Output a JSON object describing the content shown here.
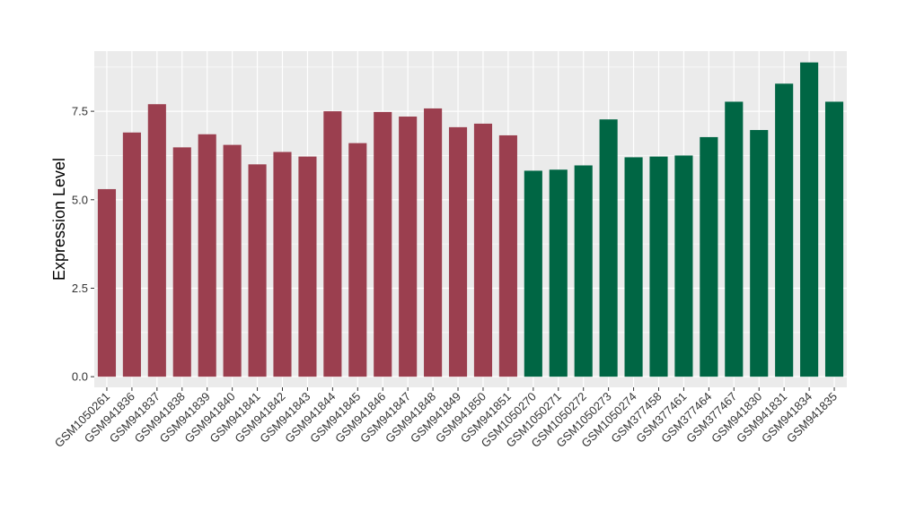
{
  "chart_data": {
    "type": "bar",
    "title": "",
    "xlabel": "",
    "ylabel": "Expression Level",
    "ylim": [
      -0.3,
      9.2
    ],
    "yticks": [
      0.0,
      2.5,
      5.0,
      7.5
    ],
    "ytick_labels": [
      "0.0",
      "2.5",
      "5.0",
      "7.5"
    ],
    "grid": true,
    "legend": "none",
    "categories": [
      "GSM1050261",
      "GSM941836",
      "GSM941837",
      "GSM941838",
      "GSM941839",
      "GSM941840",
      "GSM941841",
      "GSM941842",
      "GSM941843",
      "GSM941844",
      "GSM941845",
      "GSM941846",
      "GSM941847",
      "GSM941848",
      "GSM941849",
      "GSM941850",
      "GSM941851",
      "GSM1050270",
      "GSM1050271",
      "GSM1050272",
      "GSM1050273",
      "GSM1050274",
      "GSM377458",
      "GSM377461",
      "GSM377464",
      "GSM377467",
      "GSM941830",
      "GSM941831",
      "GSM941834",
      "GSM941835"
    ],
    "values": [
      5.3,
      6.9,
      7.7,
      6.48,
      6.85,
      6.55,
      6.0,
      6.35,
      6.22,
      7.5,
      6.6,
      7.48,
      7.35,
      7.58,
      7.05,
      7.15,
      6.82,
      5.82,
      5.85,
      5.97,
      7.27,
      6.2,
      6.22,
      6.25,
      6.77,
      7.77,
      6.97,
      8.28,
      8.88,
      7.77
    ],
    "colors": [
      "#9b3f4f",
      "#9b3f4f",
      "#9b3f4f",
      "#9b3f4f",
      "#9b3f4f",
      "#9b3f4f",
      "#9b3f4f",
      "#9b3f4f",
      "#9b3f4f",
      "#9b3f4f",
      "#9b3f4f",
      "#9b3f4f",
      "#9b3f4f",
      "#9b3f4f",
      "#9b3f4f",
      "#9b3f4f",
      "#9b3f4f",
      "#006644",
      "#006644",
      "#006644",
      "#006644",
      "#006644",
      "#006644",
      "#006644",
      "#006644",
      "#006644",
      "#006644",
      "#006644",
      "#006644",
      "#006644"
    ],
    "panel_background": "#ebebeb",
    "grid_color": "#ffffff"
  }
}
